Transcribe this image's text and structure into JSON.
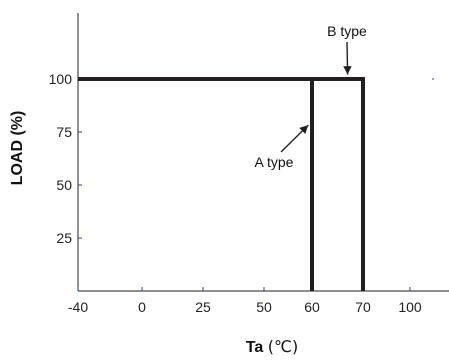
{
  "chart_data": {
    "type": "line",
    "x_axis": {
      "title": "Ta",
      "unit": "(℃)",
      "ticks": [
        {
          "value": -40,
          "label": "-40"
        },
        {
          "value": 0,
          "label": "0"
        },
        {
          "value": 25,
          "label": "25"
        },
        {
          "value": 50,
          "label": "50"
        },
        {
          "value": 60,
          "label": "60"
        },
        {
          "value": 70,
          "label": "70"
        },
        {
          "value": 100,
          "label": "100"
        }
      ]
    },
    "y_axis": {
      "title": "LOAD (%)",
      "ylim": [
        0,
        100
      ],
      "ticks": [
        {
          "value": 25,
          "label": "25"
        },
        {
          "value": 50,
          "label": "50"
        },
        {
          "value": 75,
          "label": "75"
        },
        {
          "value": 100,
          "label": "100"
        }
      ]
    },
    "series": [
      {
        "points": [
          {
            "x": -40,
            "y": 100
          },
          {
            "x": 60,
            "y": 100
          },
          {
            "x": 60,
            "y": 0
          }
        ]
      },
      {
        "points": [
          {
            "x": -40,
            "y": 100
          },
          {
            "x": 70,
            "y": 100
          },
          {
            "x": 70,
            "y": 0
          }
        ]
      }
    ],
    "annotations": [
      {
        "text": "B type",
        "target": {
          "x": 67,
          "y": 100
        }
      },
      {
        "text": "A type",
        "target": {
          "x": 60,
          "y": 80
        }
      }
    ],
    "grid": false,
    "colors": {
      "line": "#231f20",
      "tick": "#1f3fb5",
      "axis": "#222222"
    }
  }
}
